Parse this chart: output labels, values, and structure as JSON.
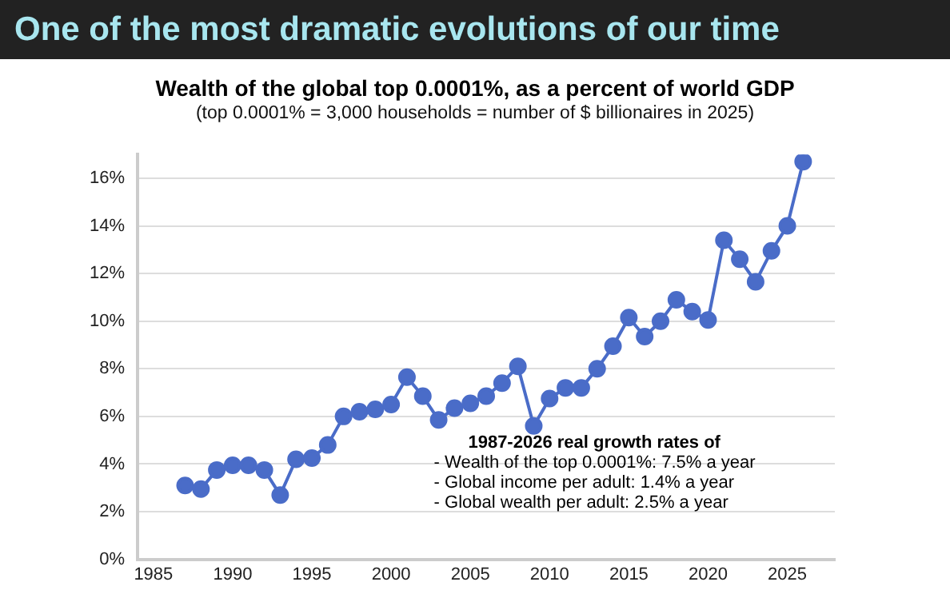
{
  "chart_data": {
    "type": "line",
    "title": "One of the most dramatic evolutions of our time",
    "subtitle": "Wealth of the global top 0.0001%, as a percent of world GDP",
    "annotations": [
      "(top 0.0001% = 3,000 households = number of $ billionaires in 2025)",
      "1987-2026 real growth rates of",
      "- Wealth of the top 0.0001%: 7.5% a year",
      "- Global income per adult: 1.4% a year",
      "- Global wealth per adult: 2.5% a year"
    ],
    "x": [
      1987,
      1988,
      1989,
      1990,
      1991,
      1992,
      1993,
      1994,
      1995,
      1996,
      1997,
      1998,
      1999,
      2000,
      2001,
      2002,
      2003,
      2004,
      2005,
      2006,
      2007,
      2008,
      2009,
      2010,
      2011,
      2012,
      2013,
      2014,
      2015,
      2016,
      2017,
      2018,
      2019,
      2020,
      2021,
      2022,
      2023,
      2024,
      2025,
      2026
    ],
    "series": [
      {
        "color": "#4a6cc8",
        "values": [
          3.1,
          2.95,
          3.75,
          3.95,
          3.95,
          3.75,
          2.7,
          4.2,
          4.25,
          4.8,
          6.0,
          6.2,
          6.3,
          6.5,
          7.65,
          6.85,
          5.85,
          6.35,
          6.55,
          6.85,
          7.4,
          8.1,
          5.6,
          6.75,
          7.2,
          7.2,
          8.0,
          8.95,
          10.15,
          9.35,
          10.0,
          10.9,
          10.4,
          10.05,
          13.4,
          12.6,
          11.65,
          12.95,
          14.0,
          16.7
        ]
      }
    ],
    "xlim": [
      1984,
      2028
    ],
    "xticks": [
      1985,
      1990,
      1995,
      2000,
      2005,
      2010,
      2015,
      2020,
      2025
    ],
    "ylim": [
      0,
      17
    ],
    "yticks": [
      {
        "value": 0,
        "label": "0%"
      },
      {
        "value": 2,
        "label": "2%"
      },
      {
        "value": 4,
        "label": "4%"
      },
      {
        "value": 6,
        "label": "6%"
      },
      {
        "value": 8,
        "label": "8%"
      },
      {
        "value": 10,
        "label": "10%"
      },
      {
        "value": 12,
        "label": "12%"
      },
      {
        "value": 14,
        "label": "14%"
      },
      {
        "value": 16,
        "label": "16%"
      }
    ],
    "grid": "y",
    "legend": false,
    "marker": "circle",
    "line_style": "solid"
  }
}
